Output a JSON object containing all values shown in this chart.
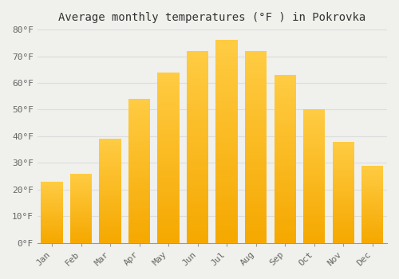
{
  "title": "Average monthly temperatures (°F ) in Pokrovka",
  "months": [
    "Jan",
    "Feb",
    "Mar",
    "Apr",
    "May",
    "Jun",
    "Jul",
    "Aug",
    "Sep",
    "Oct",
    "Nov",
    "Dec"
  ],
  "values": [
    23,
    26,
    39,
    54,
    64,
    72,
    76,
    72,
    63,
    50,
    38,
    29
  ],
  "bar_color_bottom": "#F5A800",
  "bar_color_top": "#FFCC44",
  "background_color": "#F0F0EC",
  "grid_color": "#DDDDDD",
  "ylim": [
    0,
    80
  ],
  "yticks": [
    0,
    10,
    20,
    30,
    40,
    50,
    60,
    70,
    80
  ],
  "ytick_labels": [
    "0°F",
    "10°F",
    "20°F",
    "30°F",
    "40°F",
    "50°F",
    "60°F",
    "70°F",
    "80°F"
  ],
  "title_fontsize": 10,
  "tick_fontsize": 8,
  "bar_width": 0.75,
  "font_family": "monospace"
}
